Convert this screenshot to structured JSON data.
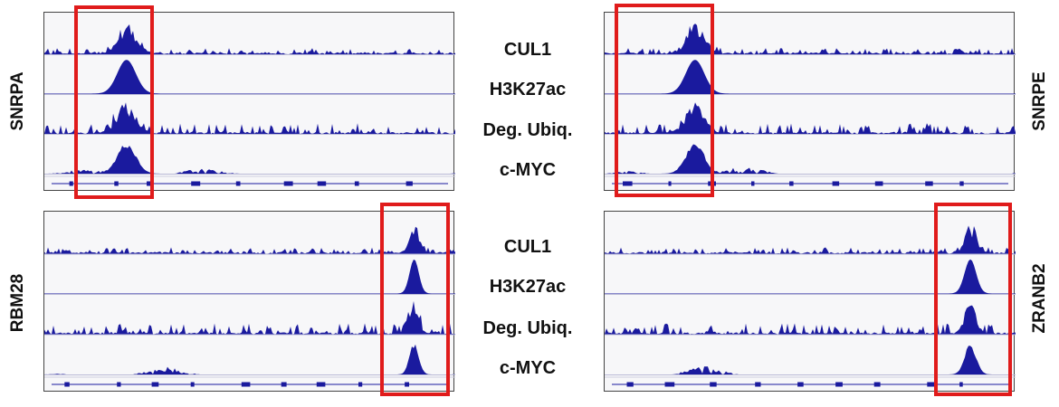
{
  "track_labels_top": [
    "CUL1",
    "H3K27ac",
    "Deg. Ubiq.",
    "c-MYC"
  ],
  "track_labels_bottom": [
    "CUL1",
    "H3K27ac",
    "Deg. Ubiq.",
    "c-MYC"
  ],
  "panels": [
    {
      "gene": "SNRPA",
      "peak_center": 0.2,
      "peak_width": 0.08
    },
    {
      "gene": "SNRPE",
      "peak_center": 0.22,
      "peak_width": 0.08
    },
    {
      "gene": "RBM28",
      "peak_center": 0.9,
      "peak_width": 0.04
    },
    {
      "gene": "ZRANB2",
      "peak_center": 0.89,
      "peak_width": 0.05
    }
  ],
  "colors": {
    "signal": "#1a1a9e",
    "highlight": "#e01b1b",
    "background": "#f7f7f9"
  }
}
